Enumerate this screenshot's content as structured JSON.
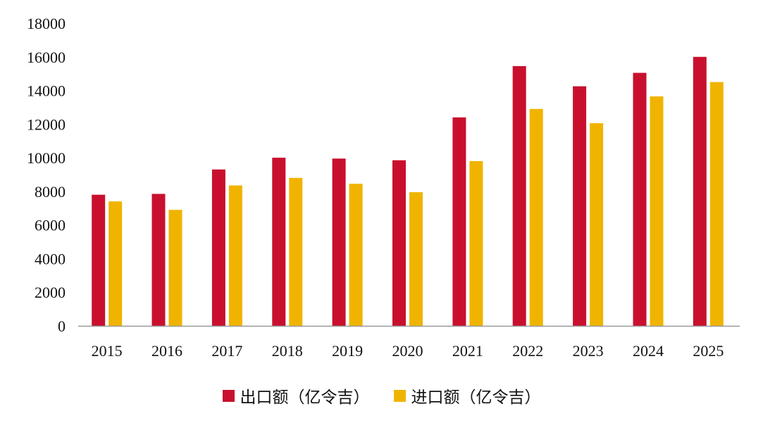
{
  "chart_data": {
    "type": "bar",
    "categories": [
      "2015",
      "2016",
      "2017",
      "2018",
      "2019",
      "2020",
      "2021",
      "2022",
      "2023",
      "2024",
      "2025"
    ],
    "series": [
      {
        "name": "出口额（亿令吉）",
        "color": "#c8102e",
        "values": [
          7800,
          7850,
          9300,
          10000,
          9950,
          9850,
          12400,
          15450,
          14250,
          15050,
          16000
        ]
      },
      {
        "name": "进口额（亿令吉）",
        "color": "#f0b400",
        "values": [
          7400,
          6900,
          8350,
          8800,
          8450,
          7950,
          9800,
          12900,
          12050,
          13650,
          14500
        ]
      }
    ],
    "ylim": [
      0,
      18000
    ],
    "yticks": [
      "0",
      "2000",
      "4000",
      "6000",
      "8000",
      "10000",
      "12000",
      "14000",
      "16000",
      "18000"
    ],
    "grid": false,
    "legend_position": "bottom"
  }
}
